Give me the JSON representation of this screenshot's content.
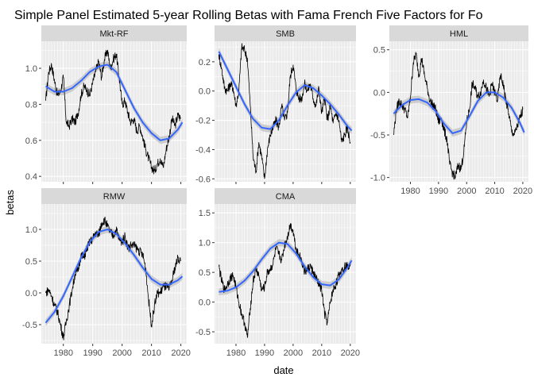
{
  "colors": {
    "panel_bg": "#ebebeb",
    "strip_bg": "#d9d9d9",
    "grid_major": "#ffffff",
    "raw_line": "#000000",
    "smooth_line": "#3366ff",
    "smooth_band": "#bdbdbd"
  },
  "chart_data": {
    "type": "line",
    "title": "Simple Panel Estimated 5-year Rolling Betas with Fama French Five Factors for Fo",
    "xlabel": "date",
    "ylabel": "betas",
    "x_ticks": [
      1980,
      1990,
      2000,
      2010,
      2020
    ],
    "xlim": [
      1972.5,
      2022
    ],
    "grid": true,
    "facet_layout": "3 columns, 2 rows, free y scales",
    "panels": [
      {
        "name": "Mkt-RF",
        "ylim": [
          0.37,
          1.15
        ],
        "y_ticks": [
          0.4,
          0.6,
          0.8,
          1.0
        ],
        "y_tick_labels": [
          "0.4",
          "0.6",
          "0.8",
          "1.0"
        ],
        "raw": {
          "x": [
            1974,
            1975,
            1976,
            1977,
            1978,
            1979,
            1980,
            1981,
            1982,
            1983,
            1984,
            1985,
            1986,
            1987,
            1988,
            1989,
            1990,
            1991,
            1992,
            1993,
            1994,
            1995,
            1996,
            1997,
            1998,
            1999,
            2000,
            2001,
            2002,
            2003,
            2004,
            2005,
            2006,
            2007,
            2008,
            2009,
            2010,
            2011,
            2012,
            2013,
            2014,
            2015,
            2016,
            2017,
            2018,
            2019,
            2020
          ],
          "y": [
            0.82,
            0.98,
            1.02,
            0.93,
            0.85,
            0.87,
            0.95,
            0.7,
            0.68,
            0.72,
            0.7,
            0.75,
            0.85,
            0.9,
            0.88,
            0.85,
            0.92,
            0.98,
            1.04,
            0.95,
            1.05,
            1.1,
            1.0,
            1.05,
            1.08,
            0.95,
            0.8,
            0.82,
            0.75,
            0.7,
            0.72,
            0.65,
            0.68,
            0.62,
            0.55,
            0.5,
            0.45,
            0.43,
            0.47,
            0.5,
            0.45,
            0.55,
            0.62,
            0.72,
            0.68,
            0.74,
            0.72
          ]
        },
        "smooth": {
          "x": [
            1974,
            1977,
            1980,
            1983,
            1986,
            1989,
            1992,
            1995,
            1998,
            2001,
            2004,
            2007,
            2010,
            2013,
            2016,
            2019,
            2020.5
          ],
          "y": [
            0.9,
            0.87,
            0.87,
            0.89,
            0.93,
            0.98,
            1.01,
            1.02,
            0.98,
            0.88,
            0.78,
            0.7,
            0.64,
            0.6,
            0.61,
            0.66,
            0.7
          ]
        }
      },
      {
        "name": "SMB",
        "ylim": [
          -0.62,
          0.34
        ],
        "y_ticks": [
          -0.6,
          -0.4,
          -0.2,
          0.0,
          0.2
        ],
        "y_tick_labels": [
          "-0.6",
          "-0.4",
          "-0.2",
          "0.0",
          "0.2"
        ],
        "raw": {
          "x": [
            1974,
            1975,
            1976,
            1977,
            1978,
            1979,
            1980,
            1981,
            1982,
            1983,
            1984,
            1985,
            1986,
            1987,
            1988,
            1989,
            1990,
            1991,
            1992,
            1993,
            1994,
            1995,
            1996,
            1997,
            1998,
            1999,
            2000,
            2001,
            2002,
            2003,
            2004,
            2005,
            2006,
            2007,
            2008,
            2009,
            2010,
            2011,
            2012,
            2013,
            2014,
            2015,
            2016,
            2017,
            2018,
            2019,
            2020
          ],
          "y": [
            0.25,
            0.15,
            0.02,
            0.0,
            0.05,
            0.02,
            -0.1,
            0.0,
            0.3,
            0.28,
            0.22,
            -0.1,
            -0.45,
            -0.55,
            -0.35,
            -0.45,
            -0.6,
            -0.4,
            -0.3,
            -0.25,
            -0.2,
            -0.25,
            -0.1,
            -0.2,
            -0.15,
            0.1,
            0.18,
            0.02,
            -0.05,
            -0.05,
            0.05,
            0.0,
            0.05,
            -0.05,
            -0.1,
            0.02,
            -0.15,
            -0.05,
            -0.2,
            -0.1,
            -0.22,
            -0.15,
            -0.2,
            -0.35,
            -0.3,
            -0.25,
            -0.35
          ]
        },
        "smooth": {
          "x": [
            1974,
            1977,
            1980,
            1983,
            1986,
            1989,
            1992,
            1995,
            1998,
            2001,
            2004,
            2007,
            2010,
            2013,
            2016,
            2019,
            2020.5
          ],
          "y": [
            0.27,
            0.15,
            0.03,
            -0.09,
            -0.19,
            -0.25,
            -0.26,
            -0.2,
            -0.1,
            -0.01,
            0.04,
            0.02,
            -0.03,
            -0.09,
            -0.16,
            -0.24,
            -0.27
          ]
        }
      },
      {
        "name": "HML",
        "ylim": [
          -1.05,
          0.6
        ],
        "y_ticks": [
          -1.0,
          -0.5,
          0.0,
          0.5
        ],
        "y_tick_labels": [
          "-1.0",
          "-0.5",
          "0.0",
          "0.5"
        ],
        "raw": {
          "x": [
            1974,
            1975,
            1976,
            1977,
            1978,
            1979,
            1980,
            1981,
            1982,
            1983,
            1984,
            1985,
            1986,
            1987,
            1988,
            1989,
            1990,
            1991,
            1992,
            1993,
            1994,
            1995,
            1996,
            1997,
            1998,
            1999,
            2000,
            2001,
            2002,
            2003,
            2004,
            2005,
            2006,
            2007,
            2008,
            2009,
            2010,
            2011,
            2012,
            2013,
            2014,
            2015,
            2016,
            2017,
            2018,
            2019,
            2020
          ],
          "y": [
            -0.5,
            -0.2,
            -0.1,
            -0.15,
            -0.2,
            -0.3,
            -0.05,
            0.35,
            0.45,
            0.2,
            0.4,
            0.2,
            0.05,
            -0.1,
            -0.15,
            -0.2,
            -0.35,
            -0.3,
            -0.45,
            -0.55,
            -0.85,
            -0.95,
            -1.0,
            -0.85,
            -0.9,
            -0.7,
            -0.35,
            -0.2,
            0.1,
            0.05,
            -0.05,
            0.0,
            0.15,
            0.05,
            -0.05,
            0.1,
            0.0,
            -0.1,
            0.2,
            0.1,
            -0.1,
            -0.25,
            -0.45,
            -0.5,
            -0.4,
            -0.3,
            -0.2
          ]
        },
        "smooth": {
          "x": [
            1974,
            1977,
            1980,
            1983,
            1986,
            1989,
            1992,
            1995,
            1998,
            2001,
            2004,
            2007,
            2010,
            2013,
            2016,
            2019,
            2020.5
          ],
          "y": [
            -0.25,
            -0.15,
            -0.09,
            -0.08,
            -0.12,
            -0.22,
            -0.37,
            -0.48,
            -0.45,
            -0.28,
            -0.1,
            0.0,
            0.0,
            -0.06,
            -0.18,
            -0.36,
            -0.47
          ]
        }
      },
      {
        "name": "RMW",
        "ylim": [
          -0.8,
          1.4
        ],
        "y_ticks": [
          -0.5,
          0.0,
          0.5,
          1.0
        ],
        "y_tick_labels": [
          "-0.5",
          "0.0",
          "0.5",
          "1.0"
        ],
        "raw": {
          "x": [
            1974,
            1975,
            1976,
            1977,
            1978,
            1979,
            1980,
            1981,
            1982,
            1983,
            1984,
            1985,
            1986,
            1987,
            1988,
            1989,
            1990,
            1991,
            1992,
            1993,
            1994,
            1995,
            1996,
            1997,
            1998,
            1999,
            2000,
            2001,
            2002,
            2003,
            2004,
            2005,
            2006,
            2007,
            2008,
            2009,
            2010,
            2011,
            2012,
            2013,
            2014,
            2015,
            2016,
            2017,
            2018,
            2019,
            2020
          ],
          "y": [
            0.0,
            0.05,
            -0.05,
            -0.2,
            -0.3,
            -0.5,
            -0.7,
            -0.45,
            -0.2,
            0.05,
            0.3,
            0.35,
            0.6,
            0.55,
            0.7,
            0.8,
            0.85,
            0.95,
            0.9,
            1.1,
            1.15,
            1.05,
            0.95,
            0.9,
            1.0,
            0.85,
            0.8,
            0.9,
            0.7,
            0.75,
            0.75,
            0.7,
            0.65,
            0.6,
            0.4,
            -0.1,
            -0.5,
            -0.2,
            0.0,
            0.0,
            0.1,
            0.1,
            0.05,
            0.2,
            0.4,
            0.55,
            0.5
          ]
        },
        "smooth": {
          "x": [
            1974,
            1977,
            1980,
            1983,
            1986,
            1989,
            1992,
            1995,
            1998,
            2001,
            2004,
            2007,
            2010,
            2013,
            2016,
            2019,
            2020.5
          ],
          "y": [
            -0.47,
            -0.3,
            -0.05,
            0.25,
            0.55,
            0.8,
            0.96,
            1.0,
            0.93,
            0.78,
            0.6,
            0.4,
            0.22,
            0.13,
            0.13,
            0.2,
            0.26
          ]
        }
      },
      {
        "name": "CMA",
        "ylim": [
          -0.7,
          1.65
        ],
        "y_ticks": [
          -0.5,
          0.0,
          0.5,
          1.0,
          1.5
        ],
        "y_tick_labels": [
          "-0.5",
          "0.0",
          "0.5",
          "1.0",
          "1.5"
        ],
        "raw": {
          "x": [
            1974,
            1975,
            1976,
            1977,
            1978,
            1979,
            1980,
            1981,
            1982,
            1983,
            1984,
            1985,
            1986,
            1987,
            1988,
            1989,
            1990,
            1991,
            1992,
            1993,
            1994,
            1995,
            1996,
            1997,
            1998,
            1999,
            2000,
            2001,
            2002,
            2003,
            2004,
            2005,
            2006,
            2007,
            2008,
            2009,
            2010,
            2011,
            2012,
            2013,
            2014,
            2015,
            2016,
            2017,
            2018,
            2019,
            2020
          ],
          "y": [
            0.6,
            0.35,
            0.2,
            0.3,
            0.4,
            0.45,
            0.25,
            0.0,
            -0.2,
            -0.35,
            -0.6,
            -0.1,
            0.35,
            0.55,
            0.45,
            0.2,
            0.25,
            0.5,
            0.55,
            0.65,
            0.9,
            0.8,
            0.7,
            0.95,
            1.1,
            1.3,
            1.2,
            0.9,
            0.8,
            0.7,
            0.5,
            0.55,
            0.6,
            0.5,
            0.4,
            0.3,
            0.2,
            -0.2,
            -0.35,
            0.0,
            0.2,
            0.3,
            0.45,
            0.55,
            0.6,
            0.6,
            0.65
          ]
        },
        "smooth": {
          "x": [
            1974,
            1977,
            1980,
            1983,
            1986,
            1989,
            1992,
            1995,
            1998,
            2001,
            2004,
            2007,
            2010,
            2013,
            2016,
            2019,
            2020.5
          ],
          "y": [
            0.17,
            0.19,
            0.25,
            0.36,
            0.52,
            0.72,
            0.9,
            1.0,
            0.98,
            0.82,
            0.6,
            0.42,
            0.3,
            0.28,
            0.38,
            0.58,
            0.7
          ]
        }
      }
    ]
  }
}
